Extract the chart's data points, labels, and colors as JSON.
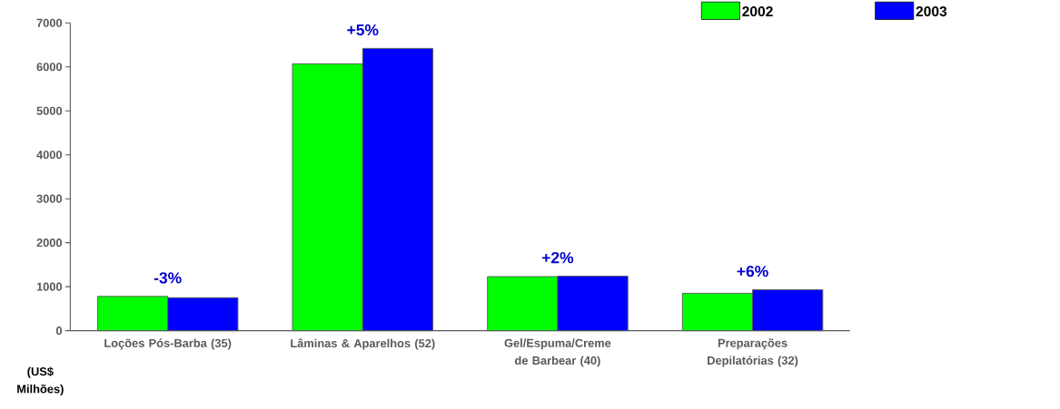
{
  "chart_data": {
    "type": "bar",
    "ylabel": "(US$ Milhões)",
    "categories": [
      "Loções Pós-Barba (35)",
      "Lâminas & Aparelhos (52)",
      "Gel/Espuma/Creme de Barbear (40)",
      "Preparações Depilatórias (32)"
    ],
    "series": [
      {
        "name": "2002",
        "color": "#00ff00",
        "values": [
          780,
          6070,
          1230,
          850
        ]
      },
      {
        "name": "2003",
        "color": "#0000ff",
        "values": [
          750,
          6420,
          1240,
          930
        ]
      }
    ],
    "annotations": [
      "-3%",
      "+5%",
      "+2%",
      "+6%"
    ],
    "ylim": [
      0,
      7000
    ],
    "yticks": [
      0,
      1000,
      2000,
      3000,
      4000,
      5000,
      6000,
      7000
    ],
    "grid": false,
    "legend": "top right"
  }
}
